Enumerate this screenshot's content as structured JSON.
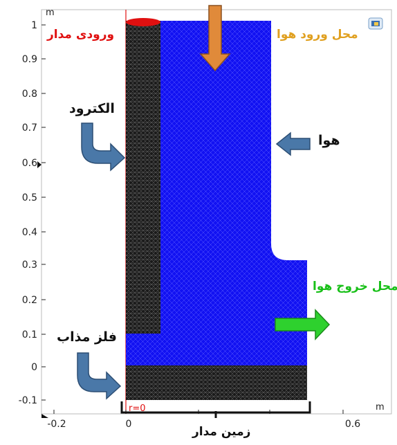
{
  "axes": {
    "x_ticks": [
      "-0.2",
      "0",
      "0.6"
    ],
    "y_ticks": [
      "1",
      "0.9",
      "0.8",
      "0.7",
      "0.6",
      "0.5",
      "0.4",
      "0.3",
      "0.2",
      "0.1",
      "0",
      "-0.1"
    ],
    "x_unit": "m",
    "y_unit": "m",
    "origin_label": "r=0"
  },
  "labels": {
    "circuit_input": "ورودی مدار",
    "air_inlet": "محل ورود هوا",
    "electrode": "الکترود",
    "air": "هوا",
    "air_outlet": "محل خروج هوا",
    "molten_metal": "فلز مذاب",
    "circuit_ground": "زمین مدار"
  },
  "colors": {
    "air_mesh": "#1212f2",
    "electrode_mesh": "#1a1a1a",
    "circuit_input": "#e01010",
    "air_inlet": "#e0a020",
    "air_outlet": "#18c018",
    "arrow_blue": "#4a78a8",
    "arrow_orange": "#e08a3a",
    "arrow_green": "#2ed12e"
  }
}
